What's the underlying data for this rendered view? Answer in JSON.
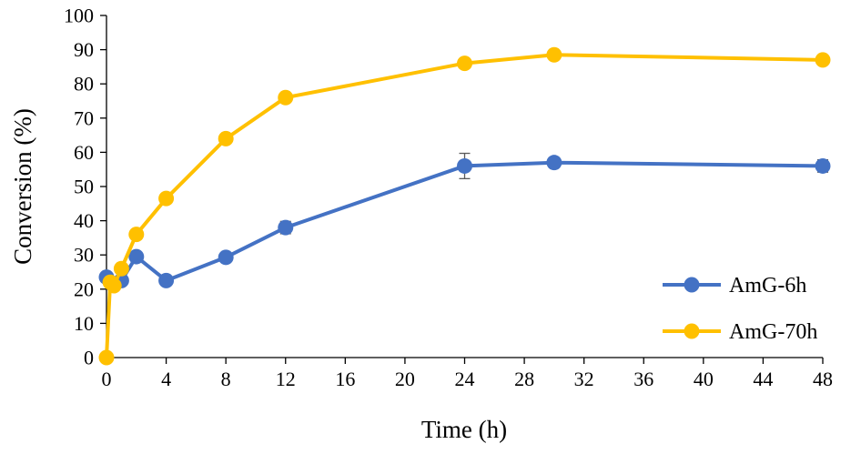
{
  "chart_data": {
    "type": "line",
    "title": "",
    "xlabel": "Time (h)",
    "ylabel": "Conversion (%)",
    "xlim": [
      0,
      48
    ],
    "ylim": [
      0,
      100
    ],
    "xticks": [
      0,
      4,
      8,
      12,
      16,
      20,
      24,
      28,
      32,
      36,
      40,
      44,
      48
    ],
    "yticks": [
      0,
      10,
      20,
      30,
      40,
      50,
      60,
      70,
      80,
      90,
      100
    ],
    "grid": false,
    "legend_position": "bottom-right",
    "series": [
      {
        "name": "AmG-6h",
        "color": "#4472C4",
        "x": [
          0,
          0.5,
          1,
          2,
          4,
          8,
          12,
          24,
          30,
          48
        ],
        "y": [
          23.5,
          21.5,
          22.5,
          29.5,
          22.5,
          29.3,
          38,
          56,
          57,
          56
        ],
        "error": [
          0,
          0,
          0,
          0,
          1.2,
          0,
          1.8,
          3.7,
          0,
          1.8
        ]
      },
      {
        "name": "AmG-70h",
        "color": "#FFC000",
        "x": [
          0,
          0.25,
          0.5,
          1,
          2,
          4,
          8,
          12,
          24,
          30,
          48
        ],
        "y": [
          0,
          22,
          21,
          26,
          36,
          46.5,
          64,
          76,
          86,
          88.5,
          87
        ],
        "error": [
          0,
          0,
          0,
          0,
          0,
          0,
          0,
          0,
          0,
          0,
          0
        ]
      }
    ]
  }
}
